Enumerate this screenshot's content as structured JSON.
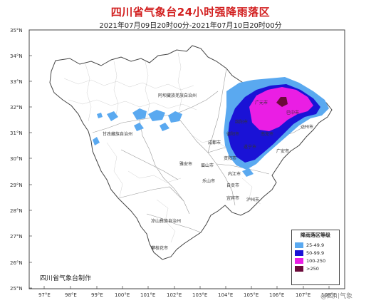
{
  "header": {
    "title": "四川省气象台24小时强降雨落区",
    "subtitle": "2021年07月09日20时00分-2021年07月10日20时00分"
  },
  "axes": {
    "lat_labels": [
      "35°N",
      "34°N",
      "33°N",
      "32°N",
      "31°N",
      "30°N",
      "29°N",
      "28°N",
      "27°N",
      "26°N",
      "25°N"
    ],
    "lon_labels": [
      "97°E",
      "98°E",
      "99°E",
      "100°E",
      "101°E",
      "102°E",
      "103°E",
      "104°E",
      "105°E",
      "106°E",
      "107°E",
      "108°E"
    ]
  },
  "cities": {
    "aba": "阿坝藏族羌族自治州",
    "guangyuan": "广元市",
    "bazhong": "巴中市",
    "mianyang": "绵阳市",
    "nanchong": "南充市",
    "dazhou": "达州市",
    "garze": "甘孜藏族自治州",
    "deyang": "德阳市",
    "chengdu": "成都市",
    "suining": "遂宁市",
    "guangan": "广安市",
    "yaan": "雅安市",
    "meishan": "眉山市",
    "ziyang": "资阳市",
    "neijiang": "内江市",
    "leshan": "乐山市",
    "zigong": "自贡市",
    "yibin": "宜宾市",
    "luzhou": "泸州市",
    "liangshan": "凉山彝族自治州",
    "panzhihua": "攀枝花市"
  },
  "legend": {
    "title": "降雨落区等级",
    "items": [
      {
        "label": "25-49.9",
        "color": "#5aa9f0"
      },
      {
        "label": "50-99.9",
        "color": "#1a12d6"
      },
      {
        "label": "100-250",
        "color": "#ea1ee4"
      },
      {
        "label": ">250",
        "color": "#6b0a3a"
      }
    ]
  },
  "credit": "四川省气象台制作",
  "watermark": "@四川气象"
}
